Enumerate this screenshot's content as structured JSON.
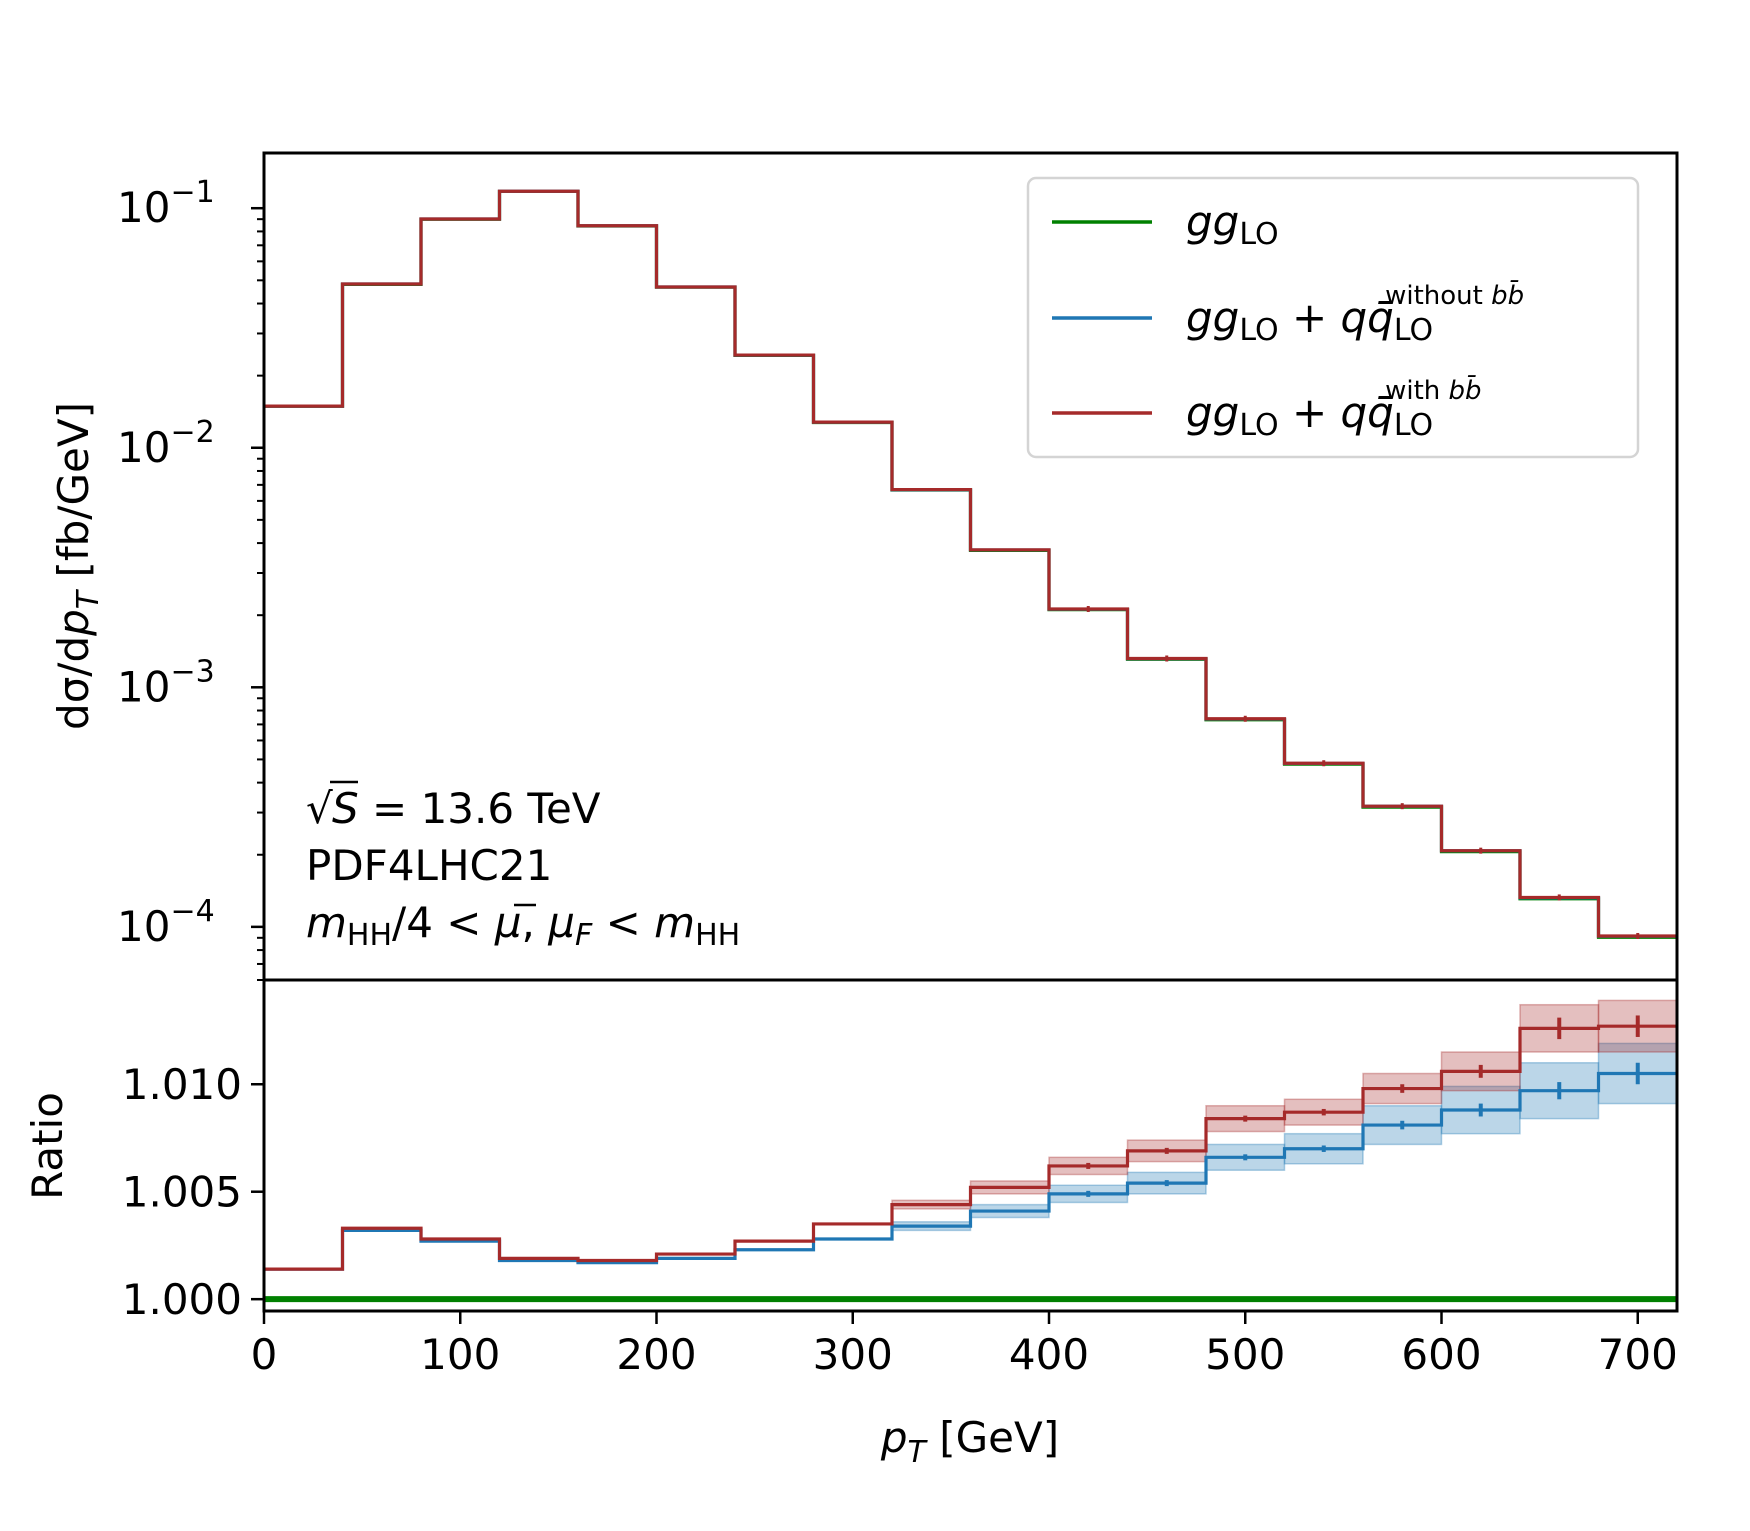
{
  "chart_data": [
    {
      "type": "line",
      "panel": "main",
      "step": "histogram",
      "ylabel": "dσ/dp_T [fb/GeV]",
      "yscale": "log",
      "ylim": [
        6e-05,
        0.17
      ],
      "xlim": [
        0,
        720
      ],
      "y_ticks": [
        {
          "value": 0.1,
          "base": "10",
          "exp": "−1"
        },
        {
          "value": 0.01,
          "base": "10",
          "exp": "−2"
        },
        {
          "value": 0.001,
          "base": "10",
          "exp": "−3"
        },
        {
          "value": 0.0001,
          "base": "10",
          "exp": "−4"
        }
      ],
      "bin_edges": [
        0,
        40,
        80,
        120,
        160,
        200,
        240,
        280,
        320,
        360,
        400,
        440,
        480,
        520,
        560,
        600,
        640,
        680,
        720
      ],
      "series": [
        {
          "name": "gg_LO",
          "color": "#008000",
          "values": [
            0.0149,
            0.0481,
            0.0899,
            0.1175,
            0.0843,
            0.0468,
            0.0243,
            0.01275,
            0.00666,
            0.00373,
            0.00211,
            0.00131,
            0.000732,
            0.000478,
            0.000316,
            0.000206,
            0.000131,
            9.05e-05
          ]
        },
        {
          "name": "gg_LO + qq̄_LO without bb̄",
          "color": "#1f77b4",
          "values": [
            0.01492,
            0.04826,
            0.09015,
            0.11771,
            0.08445,
            0.04689,
            0.02436,
            0.01279,
            0.00668,
            0.003745,
            0.00212,
            0.001317,
            0.000737,
            0.000481,
            0.000319,
            0.000208,
            0.0001323,
            9.14e-05
          ]
        },
        {
          "name": "gg_LO + qq̄_LO with bb̄",
          "color": "#a52a2a",
          "values": [
            0.01492,
            0.04826,
            0.09016,
            0.11772,
            0.08446,
            0.0469,
            0.02437,
            0.01279,
            0.00669,
            0.00375,
            0.002123,
            0.001319,
            0.000739,
            0.000482,
            0.000319,
            0.000208,
            0.0001327,
            9.16e-05
          ]
        }
      ],
      "error_points": [
        420,
        460,
        500,
        540,
        580,
        620,
        660,
        700
      ],
      "annotations": [
        "√S = 13.6 TeV",
        "PDF4LHC21",
        "m_HH/4 < μ̄, μ_F < m_HH"
      ],
      "legend_placement": "upper right"
    },
    {
      "type": "line",
      "panel": "ratio",
      "step": "histogram",
      "xlabel": "p_T [GeV]",
      "ylabel": "Ratio",
      "ylim": [
        0.99945,
        1.01485
      ],
      "xlim": [
        0,
        720
      ],
      "x_ticks": [
        "0",
        "100",
        "200",
        "300",
        "400",
        "500",
        "600",
        "700"
      ],
      "y_ticks": [
        "1.000",
        "1.005",
        "1.010"
      ],
      "bin_edges": [
        0,
        40,
        80,
        120,
        160,
        200,
        240,
        280,
        320,
        360,
        400,
        440,
        480,
        520,
        560,
        600,
        640,
        680,
        720
      ],
      "series": [
        {
          "name": "gg_LO",
          "color": "#008000",
          "values": [
            1.0,
            1.0,
            1.0,
            1.0,
            1.0,
            1.0,
            1.0,
            1.0,
            1.0,
            1.0,
            1.0,
            1.0,
            1.0,
            1.0,
            1.0,
            1.0,
            1.0,
            1.0
          ]
        },
        {
          "name": "gg_LO + qq̄_LO without bb̄",
          "color": "#1f77b4",
          "values": [
            1.0014,
            1.0032,
            1.0027,
            1.0018,
            1.0017,
            1.0019,
            1.0023,
            1.0028,
            1.0034,
            1.0041,
            1.0049,
            1.0054,
            1.0066,
            1.007,
            1.0081,
            1.0088,
            1.0097,
            1.0105
          ],
          "band": [
            0.0,
            0.0,
            0.0,
            0.0,
            0.0,
            0.0,
            0.0,
            0.0,
            0.0002,
            0.0003,
            0.0004,
            0.0005,
            0.0006,
            0.0007,
            0.0009,
            0.0011,
            0.0013,
            0.0014
          ],
          "errors": [
            0,
            0,
            0,
            0,
            0,
            0,
            0,
            0,
            0,
            0,
            5e-05,
            7e-05,
            0.0001,
            0.00015,
            0.0002,
            0.0003,
            0.0004,
            0.0005
          ]
        },
        {
          "name": "gg_LO + qq̄_LO with bb̄",
          "color": "#a52a2a",
          "values": [
            1.0014,
            1.0033,
            1.0028,
            1.0019,
            1.0018,
            1.0021,
            1.0027,
            1.0035,
            1.0044,
            1.0052,
            1.0062,
            1.0069,
            1.0084,
            1.0087,
            1.0098,
            1.0106,
            1.0126,
            1.0127
          ],
          "band": [
            0.0,
            0.0,
            0.0,
            0.0,
            0.0,
            0.0,
            0.0,
            0.0,
            0.0002,
            0.0003,
            0.0004,
            0.0005,
            0.0006,
            0.0006,
            0.0007,
            0.0009,
            0.0011,
            0.0012
          ],
          "errors": [
            0,
            0,
            0,
            0,
            0,
            0,
            0,
            0,
            0,
            0,
            5e-05,
            7e-05,
            0.0001,
            0.00015,
            0.0002,
            0.0003,
            0.0005,
            0.0005
          ]
        }
      ]
    }
  ],
  "legend": {
    "items": [
      {
        "color": "#008000",
        "main": "gg",
        "sub": "LO",
        "extra": false,
        "sup_text": "",
        "sup_bb": ""
      },
      {
        "color": "#1f77b4",
        "main": "gg",
        "sub": "LO",
        "extra": true,
        "plus": "+",
        "q": "qq̄",
        "sup_text": "without ",
        "sup_bb": "bb̄"
      },
      {
        "color": "#a52a2a",
        "main": "gg",
        "sub": "LO",
        "extra": true,
        "plus": "+",
        "q": "qq̄",
        "sup_text": "with ",
        "sup_bb": "bb̄"
      }
    ]
  },
  "annotation_text": {
    "energy_prefix": "S = 13.6 TeV",
    "sqrt_symbol": "√",
    "pdf": "PDF4LHC21",
    "scale": "m_HH/4 < μ̄, μ_F < m_HH"
  },
  "labels": {
    "main_ylabel_d": "dσ/d",
    "main_ylabel_p": "p",
    "main_ylabel_T": "T",
    "main_ylabel_unit": " [fb/GeV]",
    "ratio_ylabel": "Ratio",
    "xlabel_p": "p",
    "xlabel_T": "T",
    "xlabel_unit": " [GeV]"
  }
}
